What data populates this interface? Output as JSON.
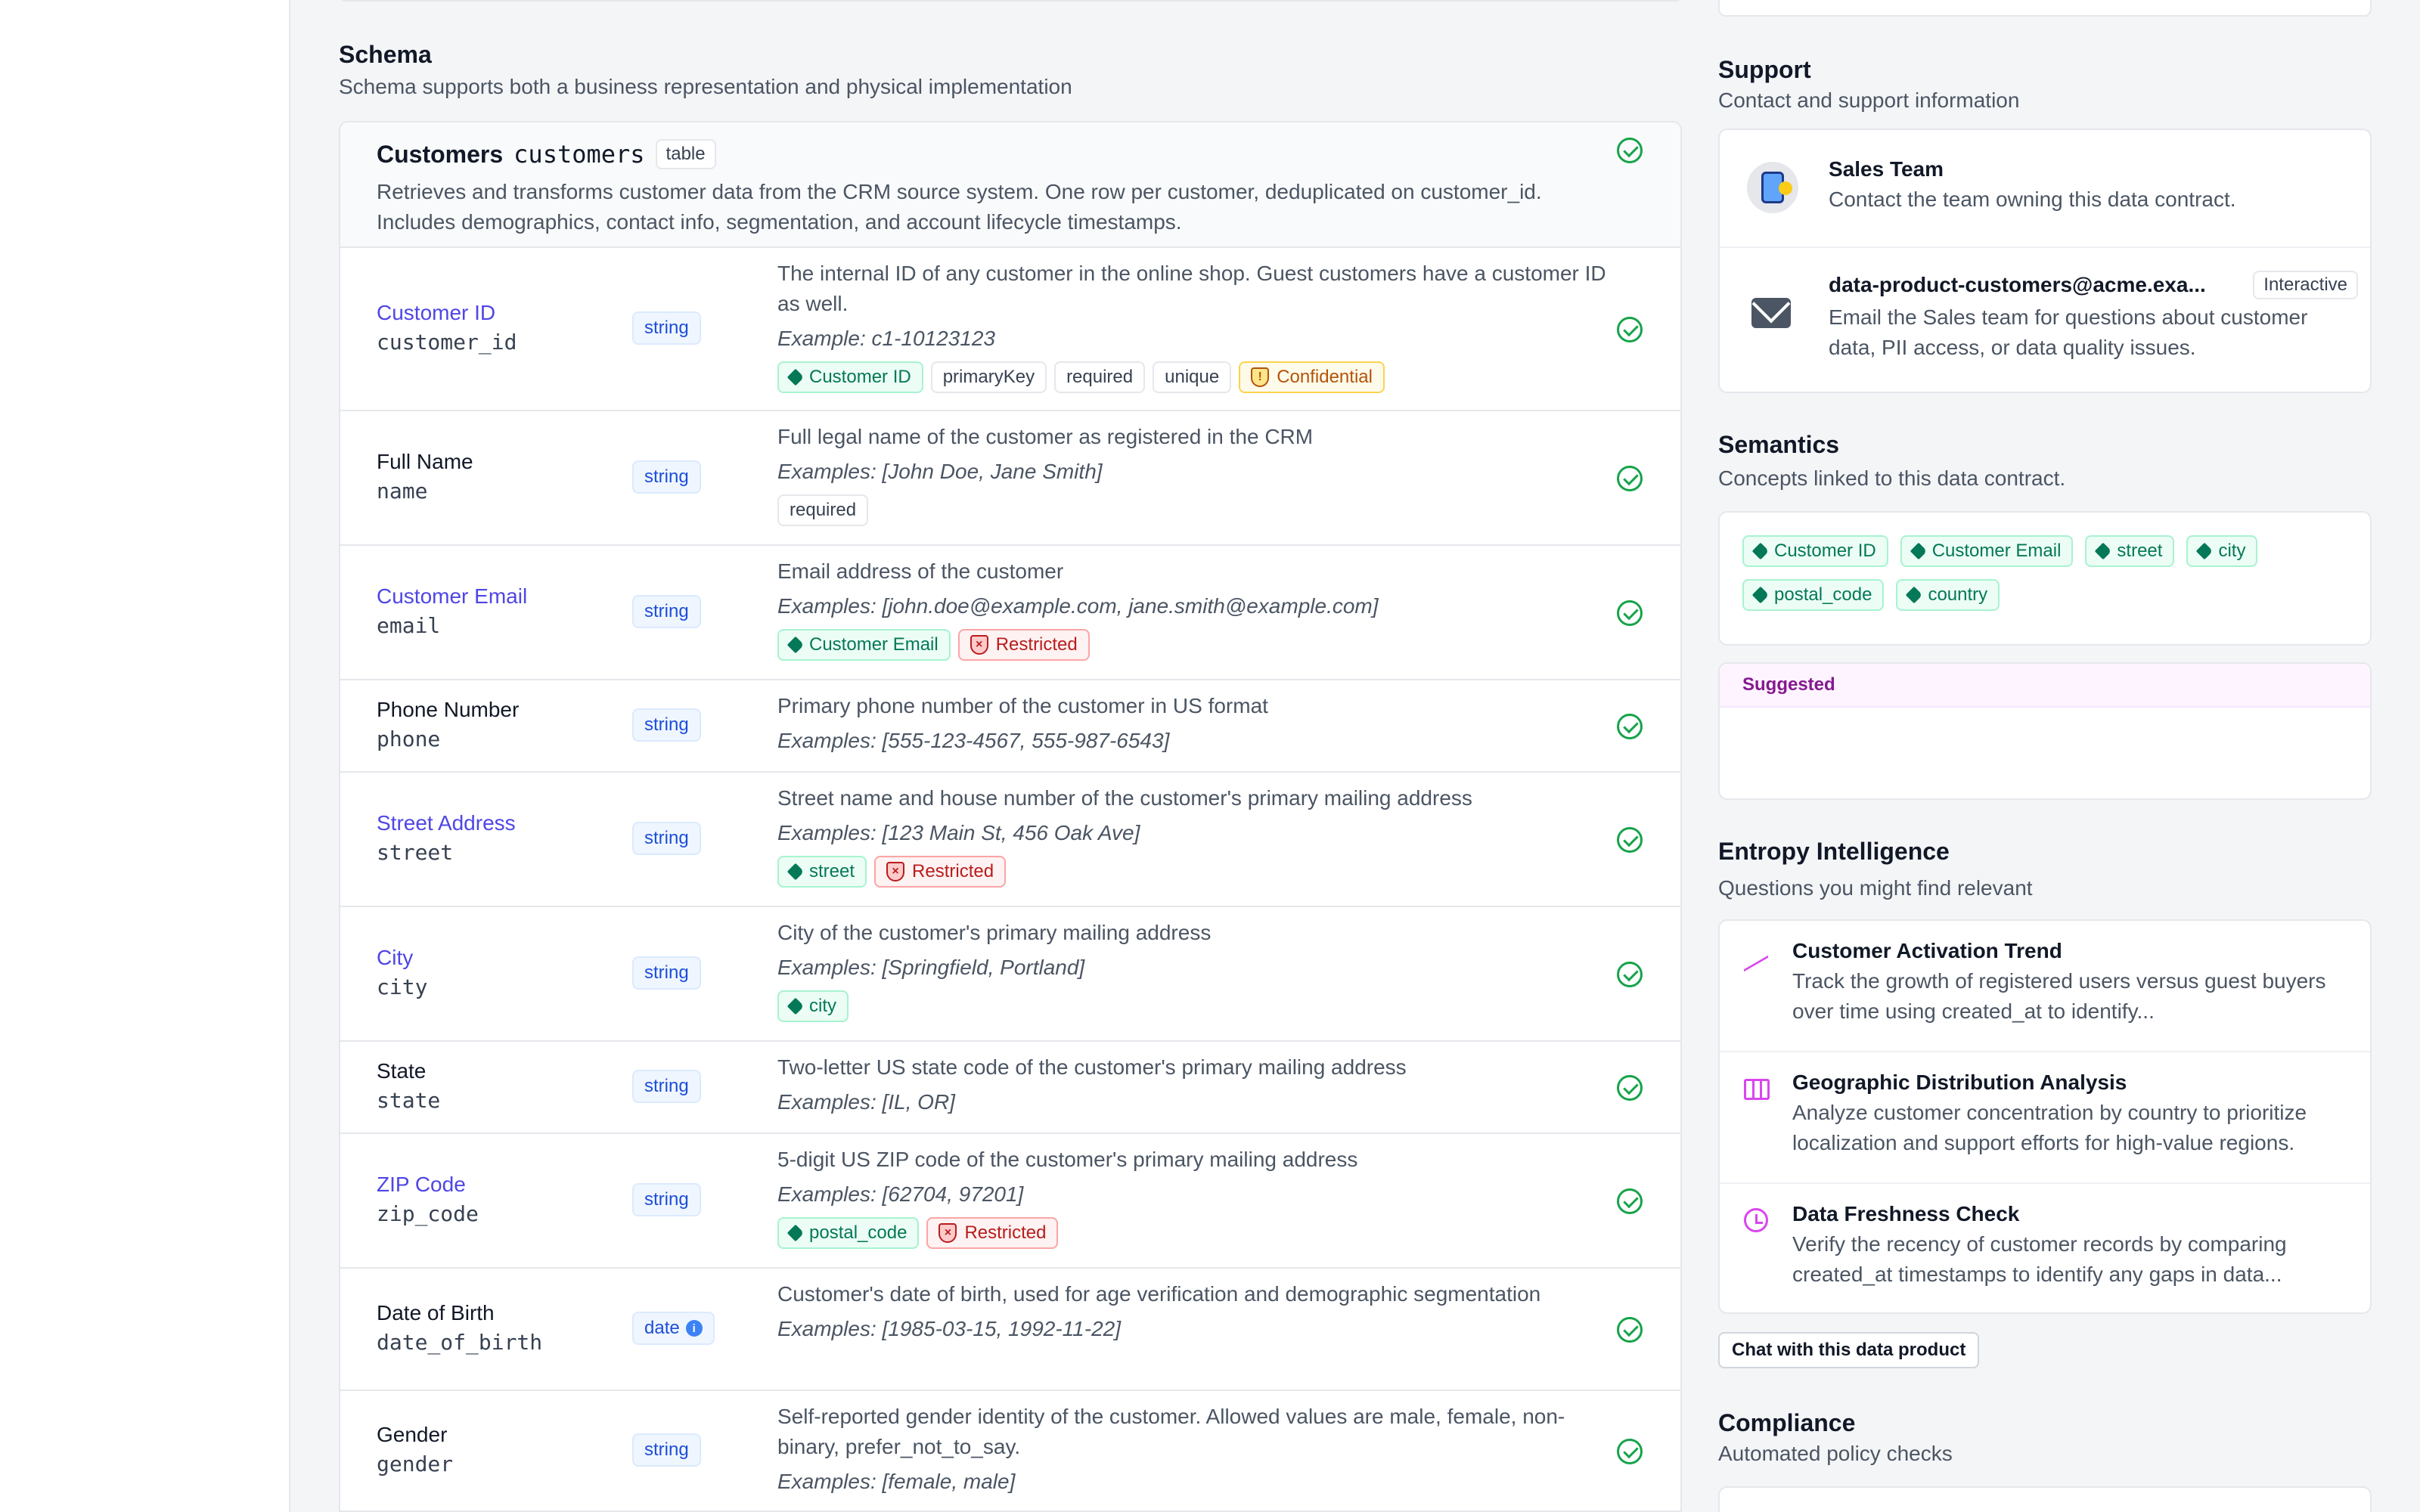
{
  "schema": {
    "title": "Schema",
    "subtitle": "Schema supports both a business representation and physical implementation",
    "table": {
      "name": "Customers",
      "physical": "customers",
      "type": "table",
      "description": "Retrieves and transforms customer data from the CRM source system. One row per customer, deduplicated on customer_id. Includes demographics, contact info, segmentation, and account lifecycle timestamps."
    },
    "fields": [
      {
        "name": "Customer ID",
        "physical": "customer_id",
        "type": "string",
        "linked": true,
        "description": "The internal ID of any customer in the online shop. Guest customers have a customer ID as well.",
        "examples": "Example: c1-10123123",
        "tags": [
          {
            "kind": "sem",
            "label": "Customer ID"
          },
          {
            "kind": "plain",
            "label": "primaryKey"
          },
          {
            "kind": "plain",
            "label": "required"
          },
          {
            "kind": "plain",
            "label": "unique"
          },
          {
            "kind": "conf",
            "label": "Confidential"
          }
        ]
      },
      {
        "name": "Full Name",
        "physical": "name",
        "type": "string",
        "linked": false,
        "description": "Full legal name of the customer as registered in the CRM",
        "examples": "Examples: [John Doe, Jane Smith]",
        "tags": [
          {
            "kind": "plain",
            "label": "required"
          }
        ]
      },
      {
        "name": "Customer Email",
        "physical": "email",
        "type": "string",
        "linked": true,
        "description": "Email address of the customer",
        "examples": "Examples: [john.doe@example.com, jane.smith@example.com]",
        "tags": [
          {
            "kind": "sem",
            "label": "Customer Email"
          },
          {
            "kind": "rest",
            "label": "Restricted"
          }
        ]
      },
      {
        "name": "Phone Number",
        "physical": "phone",
        "type": "string",
        "linked": false,
        "description": "Primary phone number of the customer in US format",
        "examples": "Examples: [555-123-4567, 555-987-6543]",
        "tags": []
      },
      {
        "name": "Street Address",
        "physical": "street",
        "type": "string",
        "linked": true,
        "description": "Street name and house number of the customer's primary mailing address",
        "examples": "Examples: [123 Main St, 456 Oak Ave]",
        "tags": [
          {
            "kind": "sem",
            "label": "street"
          },
          {
            "kind": "rest",
            "label": "Restricted"
          }
        ]
      },
      {
        "name": "City",
        "physical": "city",
        "type": "string",
        "linked": true,
        "description": "City of the customer's primary mailing address",
        "examples": "Examples: [Springfield, Portland]",
        "tags": [
          {
            "kind": "sem",
            "label": "city"
          }
        ]
      },
      {
        "name": "State",
        "physical": "state",
        "type": "string",
        "linked": false,
        "description": "Two-letter US state code of the customer's primary mailing address",
        "examples": "Examples: [IL, OR]",
        "tags": []
      },
      {
        "name": "ZIP Code",
        "physical": "zip_code",
        "type": "string",
        "linked": true,
        "description": "5-digit US ZIP code of the customer's primary mailing address",
        "examples": "Examples: [62704, 97201]",
        "tags": [
          {
            "kind": "sem",
            "label": "postal_code"
          },
          {
            "kind": "rest",
            "label": "Restricted"
          }
        ]
      },
      {
        "name": "Date of Birth",
        "physical": "date_of_birth",
        "type": "date",
        "type_info": "i",
        "linked": false,
        "description": "Customer's date of birth, used for age verification and demographic segmentation",
        "examples": "Examples: [1985-03-15, 1992-11-22]",
        "tags": []
      },
      {
        "name": "Gender",
        "physical": "gender",
        "type": "string",
        "linked": false,
        "description": "Self-reported gender identity of the customer. Allowed values are male, female, non-binary, prefer_not_to_say.",
        "examples": "Examples: [female, male]",
        "tags": []
      }
    ]
  },
  "support": {
    "title": "Support",
    "subtitle": "Contact and support information",
    "contacts": [
      {
        "title": "Sales Team",
        "description": "Contact the team owning this data contract.",
        "icon": "phone-icon"
      },
      {
        "title": "data-product-customers@acme.exa...",
        "badge": "Interactive",
        "description": "Email the Sales team for questions about customer data, PII access, or data quality issues.",
        "icon": "mail-icon"
      }
    ]
  },
  "semantics": {
    "title": "Semantics",
    "subtitle": "Concepts linked to this data contract.",
    "tags": [
      "Customer ID",
      "Customer Email",
      "street",
      "city",
      "postal_code",
      "country"
    ],
    "suggested_label": "Suggested"
  },
  "entropy": {
    "title": "Entropy Intelligence",
    "subtitle": "Questions you might find relevant",
    "questions": [
      {
        "title": "Customer Activation Trend",
        "description": "Track the growth of registered users versus guest buyers over time using created_at to identify...",
        "icon": "trend-up-icon"
      },
      {
        "title": "Geographic Distribution Analysis",
        "description": "Analyze customer concentration by country to prioritize localization and support efforts for high-value regions.",
        "icon": "map-icon"
      },
      {
        "title": "Data Freshness Check",
        "description": "Verify the recency of customer records by comparing created_at timestamps to identify any gaps in data...",
        "icon": "clock-icon"
      }
    ],
    "chat_button": "Chat with this data product"
  },
  "compliance": {
    "title": "Compliance",
    "subtitle": "Automated policy checks"
  },
  "colors": {
    "accent": "#4f46e5",
    "ok": "#16a34a",
    "semantic": "#047857",
    "restricted": "#b91c1c",
    "confidential": "#b45309"
  }
}
